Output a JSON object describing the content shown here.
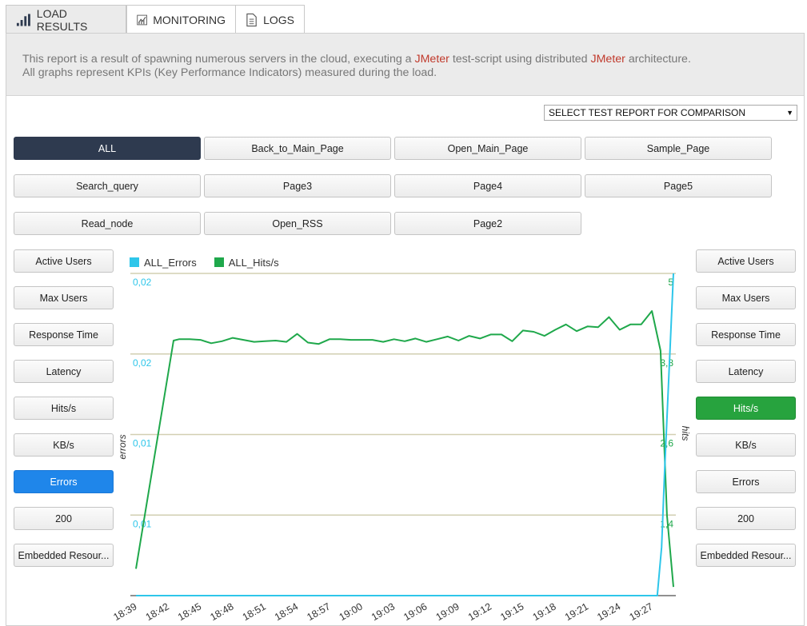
{
  "tabs": [
    {
      "label": "LOAD RESULTS",
      "icon": "bar-chart-icon",
      "active": true
    },
    {
      "label": "MONITORING",
      "icon": "line-chart-icon",
      "active": false
    },
    {
      "label": "LOGS",
      "icon": "document-icon",
      "active": false
    }
  ],
  "description": {
    "p1": "This report is a result of spawning numerous servers in the cloud, executing a ",
    "link1": "JMeter",
    "p2": " test-script using distributed ",
    "link2": "JMeter",
    "p3": " architecture.",
    "p4": "All graphs represent KPIs (Key Performance Indicators) measured during the load."
  },
  "compare_select": {
    "value": "SELECT TEST REPORT FOR COMPARISON"
  },
  "labels": {
    "b0": "ALL",
    "b1": "Back_to_Main_Page",
    "b2": "Open_Main_Page",
    "b3": "Sample_Page",
    "b4": "Search_query",
    "b5": "Page3",
    "b6": "Page4",
    "b7": "Page5",
    "b8": "Read_node",
    "b9": "Open_RSS",
    "b10": "Page2"
  },
  "labels_selected": "ALL",
  "metrics_left": {
    "m0": "Active Users",
    "m1": "Max Users",
    "m2": "Response Time",
    "m3": "Latency",
    "m4": "Hits/s",
    "m5": "KB/s",
    "m6": "Errors",
    "m7": "200",
    "m8": "Embedded Resour..."
  },
  "metrics_left_selected": "Errors",
  "metrics_right": {
    "m0": "Active Users",
    "m1": "Max Users",
    "m2": "Response Time",
    "m3": "Latency",
    "m4": "Hits/s",
    "m5": "KB/s",
    "m6": "Errors",
    "m7": "200",
    "m8": "Embedded Resour..."
  },
  "metrics_right_selected": "Hits/s",
  "colors": {
    "errors": "#2ec6ea",
    "hits": "#1fa84b",
    "grid": "#d2cfb2",
    "selected_label": "#2e3a4f",
    "selected_left": "#1f86ea",
    "selected_right": "#27a33e"
  },
  "chart_data": {
    "type": "line",
    "legend": [
      "ALL_Errors",
      "ALL_Hits/s"
    ],
    "ylabel_left": "errors",
    "ylabel_right": "hits",
    "y_left_ticks": [
      "0,01",
      "0,01",
      "0,02",
      "0,02"
    ],
    "y_right_ticks": [
      "1,4",
      "2,6",
      "3,8",
      "5"
    ],
    "x_ticks": [
      "18:39",
      "18:42",
      "18:45",
      "18:48",
      "18:51",
      "18:54",
      "18:57",
      "19:00",
      "19:03",
      "19:06",
      "19:09",
      "19:12",
      "19:15",
      "19:18",
      "19:21",
      "19:24",
      "19:27"
    ],
    "y_right_range": [
      0.2,
      5
    ],
    "y_left_range": [
      0,
      0.02
    ],
    "series": [
      {
        "name": "ALL_Hits/s",
        "axis": "right",
        "x_minutes": [
          0,
          3.5,
          4,
          5,
          6,
          7,
          8,
          9,
          10,
          11,
          12,
          13,
          14,
          15,
          16,
          17,
          18,
          19,
          20,
          21,
          22,
          23,
          24,
          25,
          26,
          27,
          28,
          29,
          30,
          31,
          32,
          33,
          34,
          35,
          36,
          37,
          38,
          39,
          40,
          41,
          42,
          43,
          44,
          45,
          46,
          47,
          48,
          48.8,
          49.4,
          50
        ],
        "values": [
          0.6,
          4.0,
          4.02,
          4.02,
          4.01,
          3.96,
          3.99,
          4.04,
          4.01,
          3.98,
          3.99,
          4.0,
          3.98,
          4.1,
          3.97,
          3.95,
          4.02,
          4.02,
          4.01,
          4.01,
          4.01,
          3.98,
          4.02,
          3.99,
          4.03,
          3.98,
          4.02,
          4.06,
          4.0,
          4.07,
          4.03,
          4.09,
          4.09,
          3.99,
          4.15,
          4.13,
          4.07,
          4.16,
          4.24,
          4.14,
          4.21,
          4.2,
          4.35,
          4.16,
          4.24,
          4.24,
          4.44,
          3.85,
          1.4,
          0.33
        ]
      },
      {
        "name": "ALL_Errors",
        "axis": "left",
        "x_minutes": [
          0,
          48.5,
          48.9,
          49.2,
          50
        ],
        "values": [
          0,
          0,
          0.003,
          0.008,
          0.02
        ]
      }
    ]
  }
}
